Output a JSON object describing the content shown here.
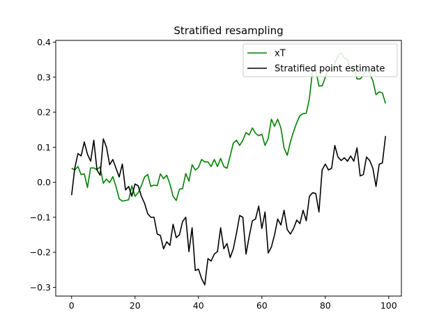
{
  "chart_data": {
    "type": "line",
    "title": "Stratified resampling",
    "xlabel": "",
    "ylabel": "",
    "xlim": [
      -5,
      104
    ],
    "ylim": [
      -0.325,
      0.405
    ],
    "x_ticks": [
      0,
      20,
      40,
      60,
      80,
      100
    ],
    "x_tick_labels": [
      "0",
      "20",
      "40",
      "60",
      "80",
      "100"
    ],
    "y_ticks": [
      -0.3,
      -0.2,
      -0.1,
      0.0,
      0.1,
      0.2,
      0.3,
      0.4
    ],
    "y_tick_labels": [
      "−0.3",
      "−0.2",
      "−0.1",
      "0.0",
      "0.1",
      "0.2",
      "0.3",
      "0.4"
    ],
    "grid": false,
    "legend_position": "top-right",
    "x": [
      0,
      1,
      2,
      3,
      4,
      5,
      6,
      7,
      8,
      9,
      10,
      11,
      12,
      13,
      14,
      15,
      16,
      17,
      18,
      19,
      20,
      21,
      22,
      23,
      24,
      25,
      26,
      27,
      28,
      29,
      30,
      31,
      32,
      33,
      34,
      35,
      36,
      37,
      38,
      39,
      40,
      41,
      42,
      43,
      44,
      45,
      46,
      47,
      48,
      49,
      50,
      51,
      52,
      53,
      54,
      55,
      56,
      57,
      58,
      59,
      60,
      61,
      62,
      63,
      64,
      65,
      66,
      67,
      68,
      69,
      70,
      71,
      72,
      73,
      74,
      75,
      76,
      77,
      78,
      79,
      80,
      81,
      82,
      83,
      84,
      85,
      86,
      87,
      88,
      89,
      90,
      91,
      92,
      93,
      94,
      95,
      96,
      97,
      98,
      99
    ],
    "series": [
      {
        "name": "xT",
        "color": "#008000",
        "values": [
          0.04,
          0.035,
          0.045,
          0.022,
          0.024,
          -0.015,
          0.041,
          0.041,
          0.036,
          0.044,
          -0.003,
          0.009,
          -0.001,
          0.016,
          -0.012,
          -0.047,
          -0.054,
          -0.052,
          -0.05,
          -0.01,
          -0.04,
          -0.03,
          -0.01,
          0.015,
          0.022,
          -0.012,
          -0.008,
          -0.01,
          0.024,
          0.01,
          0.02,
          -0.005,
          -0.04,
          -0.052,
          -0.02,
          -0.018,
          0.025,
          0.003,
          0.05,
          0.035,
          0.042,
          0.065,
          0.058,
          0.058,
          0.045,
          0.065,
          0.045,
          0.068,
          0.045,
          0.04,
          0.075,
          0.112,
          0.12,
          0.105,
          0.12,
          0.142,
          0.135,
          0.155,
          0.14,
          0.133,
          0.137,
          0.105,
          0.125,
          0.18,
          0.16,
          0.18,
          0.155,
          0.098,
          0.077,
          0.115,
          0.145,
          0.17,
          0.19,
          0.196,
          0.197,
          0.24,
          0.32,
          0.32,
          0.275,
          0.275,
          0.3,
          0.325,
          0.315,
          0.34,
          0.36,
          0.37,
          0.355,
          0.35,
          0.32,
          0.33,
          0.295,
          0.295,
          0.305,
          0.325,
          0.31,
          0.29,
          0.25,
          0.258,
          0.255,
          0.225
        ]
      },
      {
        "name": "Stratified point estimate",
        "color": "#000000",
        "values": [
          -0.037,
          0.04,
          0.082,
          0.075,
          0.115,
          0.08,
          0.06,
          0.12,
          0.035,
          0.02,
          0.124,
          0.1,
          0.05,
          0.065,
          0.04,
          0.015,
          0.052,
          -0.022,
          -0.012,
          -0.04,
          -0.005,
          -0.01,
          -0.04,
          -0.06,
          -0.09,
          -0.1,
          -0.1,
          -0.148,
          -0.152,
          -0.19,
          -0.17,
          -0.18,
          -0.12,
          -0.158,
          -0.15,
          -0.112,
          -0.1,
          -0.198,
          -0.13,
          -0.252,
          -0.248,
          -0.275,
          -0.293,
          -0.218,
          -0.225,
          -0.205,
          -0.198,
          -0.13,
          -0.19,
          -0.175,
          -0.215,
          -0.19,
          -0.145,
          -0.095,
          -0.1,
          -0.205,
          -0.155,
          -0.11,
          -0.105,
          -0.068,
          -0.132,
          -0.085,
          -0.202,
          -0.185,
          -0.15,
          -0.105,
          -0.122,
          -0.08,
          -0.135,
          -0.148,
          -0.132,
          -0.108,
          -0.118,
          -0.08,
          -0.11,
          -0.04,
          -0.03,
          -0.032,
          -0.085,
          0.035,
          0.052,
          0.035,
          0.04,
          0.105,
          0.072,
          0.062,
          0.07,
          0.06,
          0.075,
          0.06,
          0.098,
          0.018,
          0.022,
          0.072,
          0.062,
          0.04,
          -0.012,
          0.052,
          0.055,
          0.132
        ]
      }
    ]
  }
}
